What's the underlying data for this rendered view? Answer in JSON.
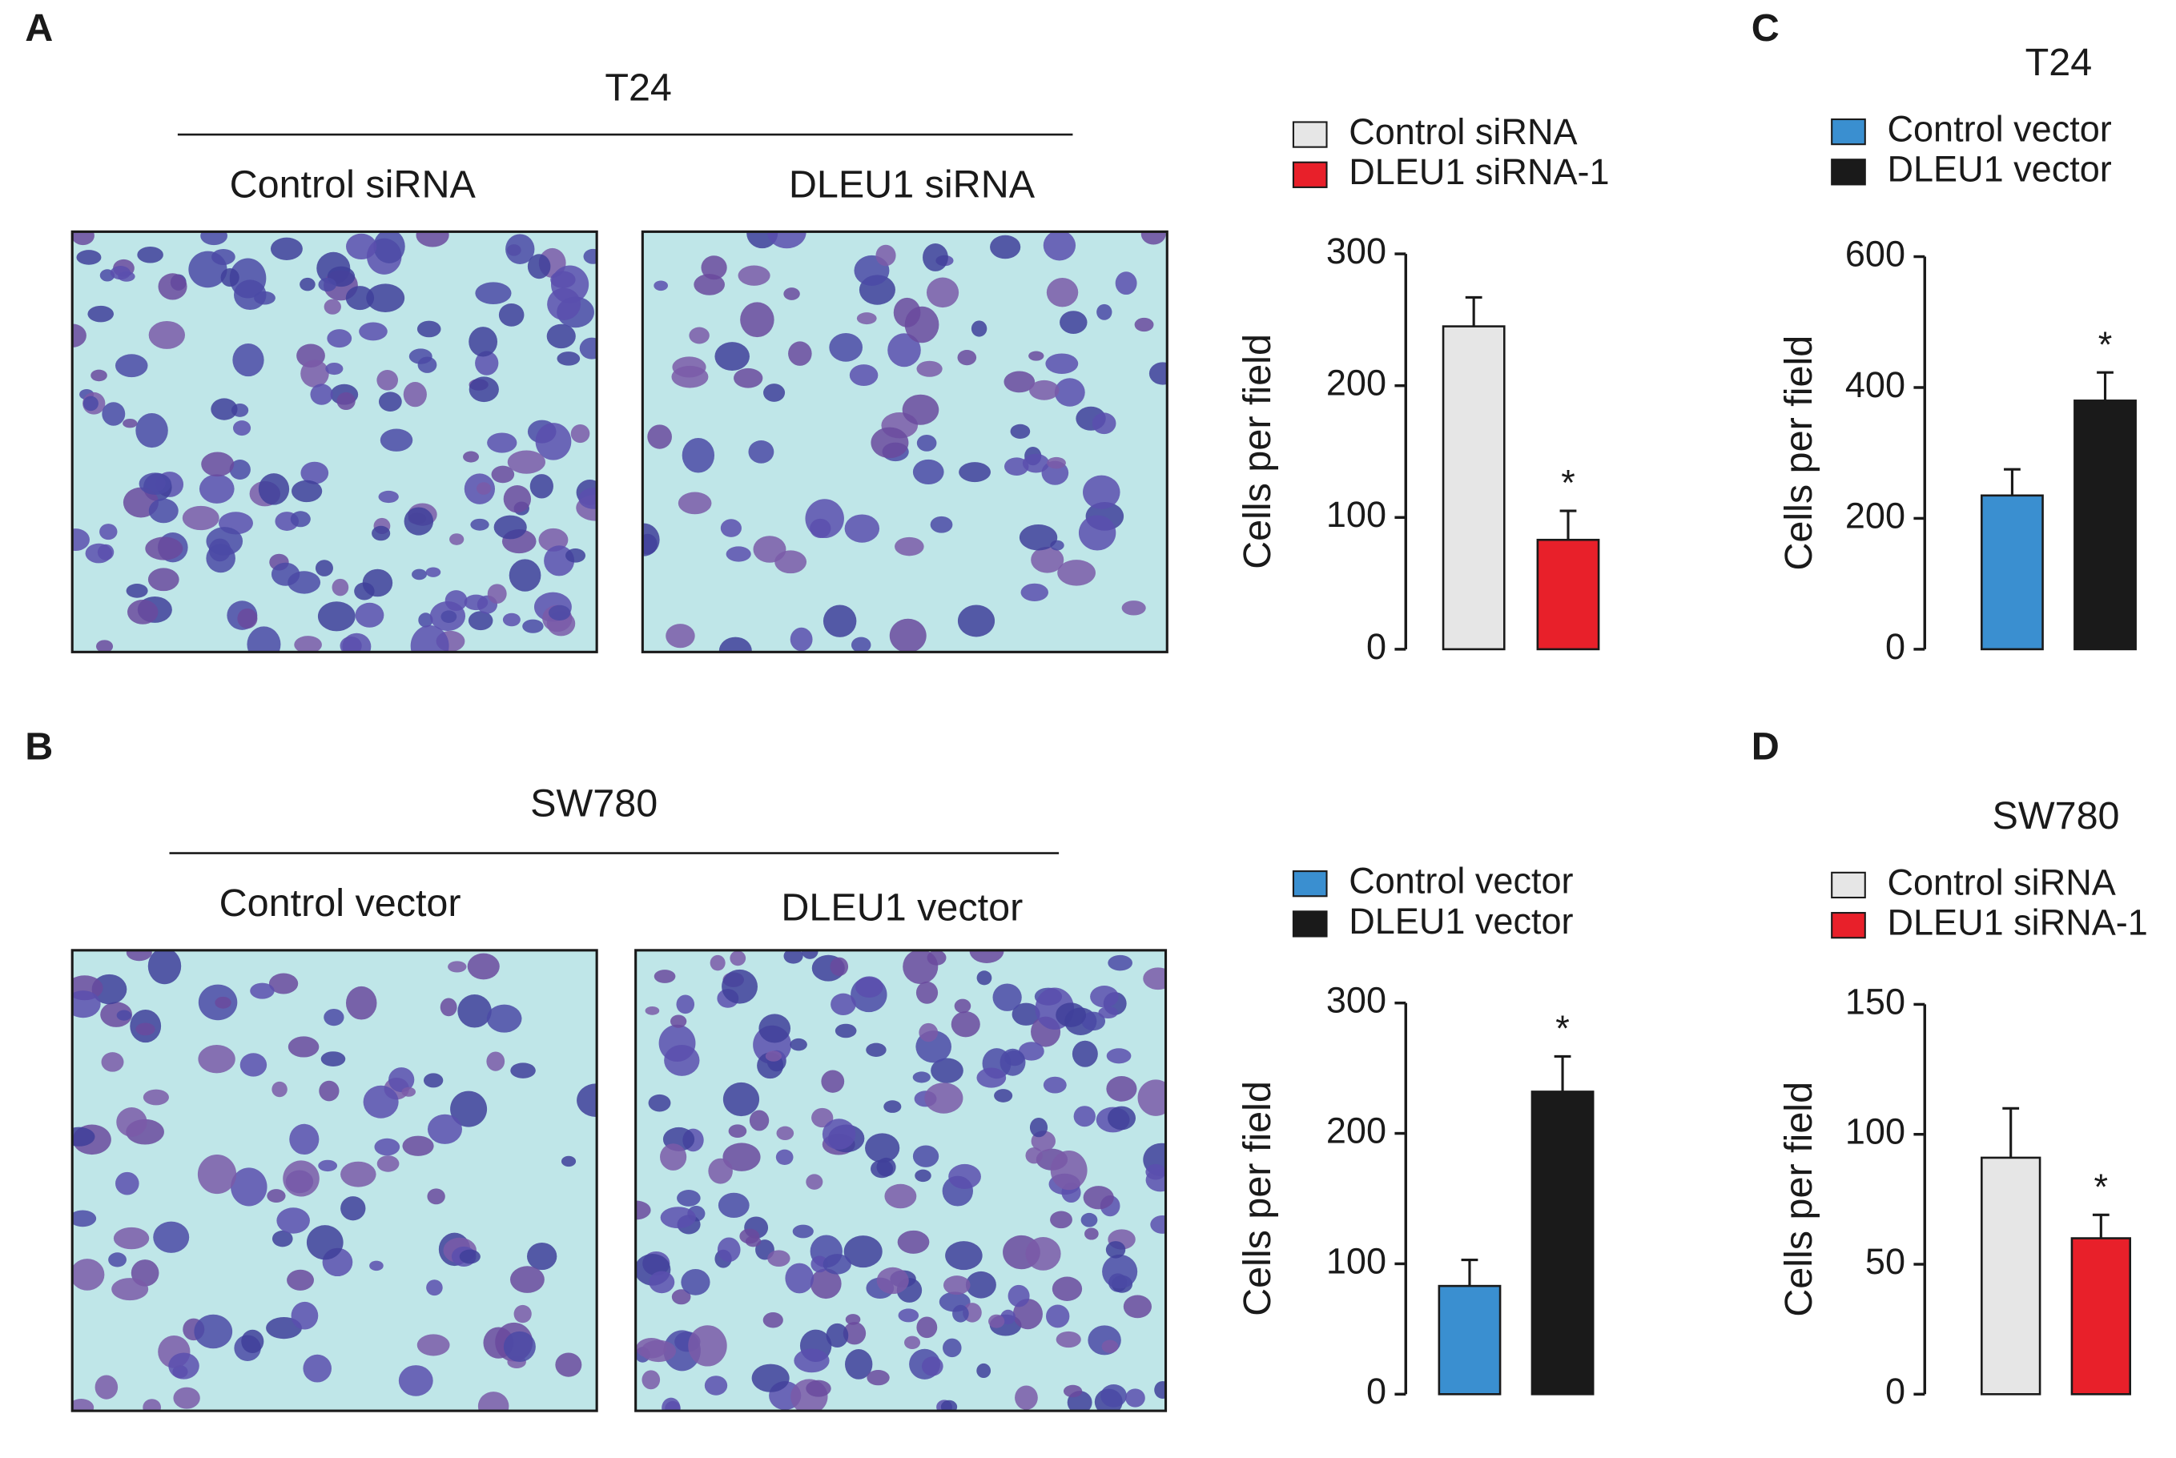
{
  "panels": [
    {
      "label": "A",
      "cell_line": "T24",
      "images": [
        "Control siRNA",
        "DLEU1 siRNA"
      ]
    },
    {
      "label": "B",
      "cell_line": "SW780",
      "images": [
        "Control vector",
        "DLEU1 vector"
      ]
    },
    {
      "label": "C"
    },
    {
      "label": "D"
    }
  ],
  "chart_data": [
    {
      "type": "bar",
      "ylabel": "Cells per field",
      "ylim": [
        0,
        300
      ],
      "yticks": [
        0,
        100,
        200,
        300
      ],
      "series": [
        {
          "name": "Control siRNA",
          "color": "#e6e6e6",
          "values": [
            245
          ],
          "errors": [
            22
          ]
        },
        {
          "name": "DLEU1 siRNA-1",
          "color": "#e8202a",
          "values": [
            83
          ],
          "errors": [
            22
          ],
          "annotation": "*"
        }
      ]
    },
    {
      "type": "bar",
      "ylabel": "Cells per field",
      "ylim": [
        0,
        300
      ],
      "yticks": [
        0,
        100,
        200,
        300
      ],
      "series": [
        {
          "name": "Control vector",
          "color": "#3a8fd0",
          "values": [
            83
          ],
          "errors": [
            20
          ]
        },
        {
          "name": "DLEU1 vector",
          "color": "#1a1a1a",
          "values": [
            232
          ],
          "errors": [
            27
          ],
          "annotation": "*"
        }
      ]
    },
    {
      "type": "bar",
      "title": "T24",
      "ylabel": "Cells per field",
      "ylim": [
        0,
        600
      ],
      "yticks": [
        0,
        200,
        400,
        600
      ],
      "series": [
        {
          "name": "Control vector",
          "color": "#3a8fd0",
          "values": [
            235
          ],
          "errors": [
            40
          ]
        },
        {
          "name": "DLEU1 vector",
          "color": "#1a1a1a",
          "values": [
            380
          ],
          "errors": [
            43
          ],
          "annotation": "*"
        }
      ]
    },
    {
      "type": "bar",
      "title": "SW780",
      "ylabel": "Cells per field",
      "ylim": [
        0,
        150
      ],
      "yticks": [
        0,
        50,
        100,
        150
      ],
      "series": [
        {
          "name": "Control siRNA",
          "color": "#e6e6e6",
          "values": [
            91
          ],
          "errors": [
            19
          ]
        },
        {
          "name": "DLEU1 siRNA-1",
          "color": "#e8202a",
          "values": [
            60
          ],
          "errors": [
            9
          ],
          "annotation": "*"
        }
      ]
    }
  ]
}
